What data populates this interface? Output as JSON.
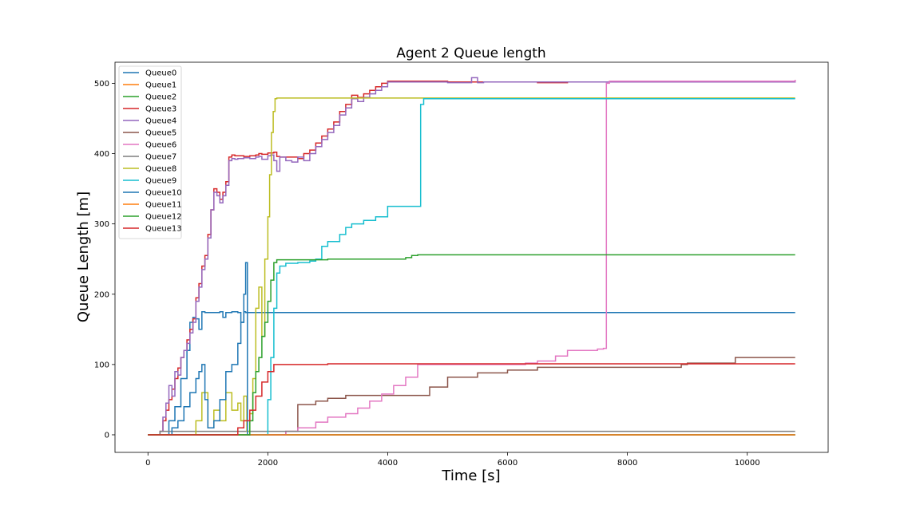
{
  "chart_data": {
    "type": "line",
    "title": "Agent 2 Queue length",
    "xlabel": "Time [s]",
    "ylabel": "Queue Length [m]",
    "xlim": [
      -550,
      11350
    ],
    "ylim": [
      -25,
      530
    ],
    "xticks": [
      0,
      2000,
      4000,
      6000,
      8000,
      10000
    ],
    "yticks": [
      0,
      100,
      200,
      300,
      400,
      500
    ],
    "grid": false,
    "legend_position": "top-left",
    "series": [
      {
        "name": "Queue0",
        "color": "#1f77b4",
        "step": true,
        "x": [
          0,
          250,
          350,
          450,
          550,
          650,
          700,
          750,
          800,
          850,
          900,
          950,
          1000,
          1100,
          1200,
          1250,
          1300,
          1400,
          1500,
          1550,
          1600,
          1630,
          1660,
          1680,
          1700,
          10800
        ],
        "y": [
          0,
          0,
          20,
          40,
          80,
          120,
          160,
          167,
          165,
          150,
          175,
          174,
          174,
          174,
          175,
          167,
          174,
          175,
          174,
          160,
          175,
          174,
          174,
          174,
          174,
          174
        ]
      },
      {
        "name": "Queue1",
        "color": "#ff7f0e",
        "step": true,
        "x": [
          0,
          10800
        ],
        "y": [
          0,
          0
        ]
      },
      {
        "name": "Queue2",
        "color": "#2ca02c",
        "step": true,
        "x": [
          0,
          1950,
          10800
        ],
        "y": [
          0,
          0,
          0
        ]
      },
      {
        "name": "Queue3",
        "color": "#d62728",
        "step": true,
        "x": [
          0,
          200,
          250,
          300,
          350,
          400,
          450,
          500,
          550,
          600,
          650,
          700,
          750,
          800,
          850,
          900,
          950,
          1000,
          1050,
          1100,
          1150,
          1200,
          1250,
          1300,
          1350,
          1400,
          1450,
          1500,
          1600,
          1700,
          1800,
          1850,
          1900,
          2000,
          2050,
          2100,
          2150,
          2200,
          2300,
          2400,
          2500,
          2600,
          2700,
          2800,
          2900,
          3000,
          3100,
          3200,
          3300,
          3400,
          3500,
          3600,
          3700,
          3800,
          3900,
          4000,
          4200,
          4500,
          5000,
          5500,
          6000,
          6500,
          7000,
          7500,
          8000,
          8500,
          9000,
          9500,
          10000,
          10500,
          10800
        ],
        "y": [
          0,
          5,
          20,
          35,
          50,
          65,
          80,
          95,
          110,
          120,
          135,
          150,
          165,
          195,
          215,
          240,
          255,
          285,
          320,
          350,
          345,
          335,
          345,
          360,
          395,
          398,
          397,
          397,
          396,
          397,
          398,
          400,
          399,
          401,
          401,
          402,
          396,
          395,
          395,
          395,
          393,
          400,
          405,
          415,
          425,
          435,
          445,
          460,
          470,
          483,
          480,
          485,
          490,
          495,
          500,
          503,
          503,
          503,
          502,
          502,
          502,
          501,
          502,
          502,
          503,
          502,
          502,
          502,
          502,
          502,
          502
        ]
      },
      {
        "name": "Queue4",
        "color": "#9467bd",
        "step": true,
        "x": [
          0,
          200,
          250,
          300,
          350,
          400,
          450,
          500,
          550,
          600,
          650,
          700,
          750,
          800,
          850,
          900,
          950,
          1000,
          1050,
          1100,
          1150,
          1200,
          1250,
          1300,
          1350,
          1400,
          1450,
          1500,
          1600,
          1700,
          1800,
          1850,
          1900,
          2000,
          2050,
          2100,
          2150,
          2200,
          2300,
          2400,
          2500,
          2600,
          2700,
          2800,
          2900,
          3000,
          3100,
          3200,
          3300,
          3400,
          3500,
          3600,
          3700,
          3800,
          3900,
          4000,
          4200,
          4500,
          5000,
          5400,
          5500,
          5600,
          6000,
          6500,
          7000,
          7500,
          8000,
          8500,
          9000,
          9500,
          10000,
          10500,
          10800
        ],
        "y": [
          0,
          5,
          25,
          45,
          70,
          55,
          90,
          85,
          110,
          120,
          130,
          145,
          160,
          190,
          210,
          235,
          250,
          280,
          320,
          345,
          340,
          330,
          340,
          355,
          390,
          393,
          392,
          393,
          394,
          393,
          395,
          396,
          392,
          397,
          398,
          390,
          375,
          395,
          390,
          388,
          395,
          390,
          400,
          410,
          420,
          430,
          440,
          455,
          465,
          478,
          474,
          480,
          485,
          490,
          495,
          502,
          502,
          502,
          501,
          508,
          501,
          502,
          502,
          502,
          502,
          502,
          502,
          502,
          502,
          502,
          502,
          502,
          505
        ]
      },
      {
        "name": "Queue5",
        "color": "#8c564b",
        "step": true,
        "x": [
          0,
          2200,
          2300,
          2500,
          2800,
          3000,
          3300,
          3700,
          4000,
          4300,
          4700,
          5000,
          5500,
          6000,
          6500,
          8000,
          8900,
          9000,
          9500,
          9800,
          10800
        ],
        "y": [
          0,
          0,
          5,
          43,
          48,
          52,
          56,
          56,
          56,
          56,
          68,
          82,
          88,
          92,
          96,
          96,
          100,
          102,
          102,
          110,
          110
        ]
      },
      {
        "name": "Queue6",
        "color": "#e377c2",
        "step": true,
        "x": [
          0,
          2000,
          2300,
          2500,
          2800,
          3000,
          3300,
          3500,
          3700,
          3900,
          4100,
          4300,
          4500,
          5000,
          5500,
          6000,
          6300,
          6500,
          6800,
          7000,
          7500,
          7600,
          7650,
          7700,
          8000,
          10800
        ],
        "y": [
          0,
          0,
          5,
          10,
          18,
          25,
          30,
          38,
          48,
          58,
          70,
          82,
          100,
          100,
          100,
          100,
          102,
          105,
          112,
          120,
          122,
          123,
          500,
          503,
          503,
          505
        ]
      },
      {
        "name": "Queue7",
        "color": "#7f7f7f",
        "step": true,
        "x": [
          0,
          200,
          500,
          1000,
          1500,
          2000,
          2500,
          3000,
          10800
        ],
        "y": [
          0,
          5,
          5,
          5,
          5,
          5,
          5,
          5,
          5
        ]
      },
      {
        "name": "Queue8",
        "color": "#bcbd22",
        "step": true,
        "x": [
          0,
          800,
          900,
          1000,
          1100,
          1200,
          1300,
          1400,
          1500,
          1550,
          1600,
          1650,
          1700,
          1750,
          1800,
          1850,
          1900,
          1950,
          2000,
          2030,
          2060,
          2090,
          2120,
          2150,
          2200,
          2400,
          3000,
          4000,
          4500,
          10800
        ],
        "y": [
          0,
          20,
          60,
          10,
          35,
          20,
          60,
          35,
          45,
          20,
          55,
          5,
          30,
          80,
          180,
          210,
          140,
          250,
          310,
          370,
          430,
          460,
          478,
          479,
          479,
          479,
          479,
          479,
          479,
          479
        ]
      },
      {
        "name": "Queue9",
        "color": "#17becf",
        "step": true,
        "x": [
          0,
          1950,
          2000,
          2050,
          2100,
          2150,
          2200,
          2300,
          2500,
          2700,
          2800,
          2900,
          3000,
          3200,
          3300,
          3400,
          3600,
          3800,
          4000,
          4200,
          4400,
          4500,
          4550,
          4600,
          10800
        ],
        "y": [
          0,
          0,
          50,
          110,
          180,
          230,
          240,
          244,
          245,
          247,
          250,
          268,
          275,
          285,
          295,
          300,
          305,
          310,
          325,
          325,
          325,
          325,
          470,
          478,
          478
        ]
      },
      {
        "name": "Queue10",
        "color": "#1f77b4",
        "step": true,
        "x": [
          0,
          300,
          400,
          500,
          600,
          700,
          800,
          850,
          900,
          950,
          1000,
          1100,
          1200,
          1300,
          1400,
          1500,
          1550,
          1600,
          1630,
          1660,
          1680,
          1700,
          10800
        ],
        "y": [
          0,
          0,
          10,
          20,
          40,
          60,
          80,
          90,
          100,
          50,
          10,
          20,
          50,
          90,
          100,
          130,
          160,
          200,
          245,
          0,
          0,
          0,
          0
        ]
      },
      {
        "name": "Queue11",
        "color": "#ff7f0e",
        "step": true,
        "x": [
          0,
          10800
        ],
        "y": [
          0,
          0
        ]
      },
      {
        "name": "Queue12",
        "color": "#2ca02c",
        "step": true,
        "x": [
          0,
          1700,
          1750,
          1800,
          1850,
          1900,
          1950,
          2000,
          2050,
          2100,
          2150,
          2200,
          2500,
          3000,
          3500,
          4000,
          4300,
          4400,
          4500,
          5000,
          6000,
          7000,
          8000,
          9000,
          10000,
          10800
        ],
        "y": [
          0,
          20,
          60,
          90,
          110,
          140,
          160,
          190,
          220,
          245,
          249,
          249,
          249,
          250,
          250,
          250,
          252,
          255,
          256,
          256,
          256,
          256,
          256,
          256,
          256,
          256
        ]
      },
      {
        "name": "Queue13",
        "color": "#d62728",
        "step": true,
        "x": [
          0,
          1400,
          1500,
          1600,
          1700,
          1800,
          1900,
          2000,
          2100,
          2200,
          3000,
          4000,
          5000,
          6000,
          7000,
          8000,
          9000,
          10000,
          10800
        ],
        "y": [
          0,
          0,
          10,
          20,
          35,
          55,
          75,
          90,
          100,
          100,
          101,
          101,
          101,
          101,
          101,
          101,
          101,
          101,
          101
        ]
      }
    ]
  }
}
